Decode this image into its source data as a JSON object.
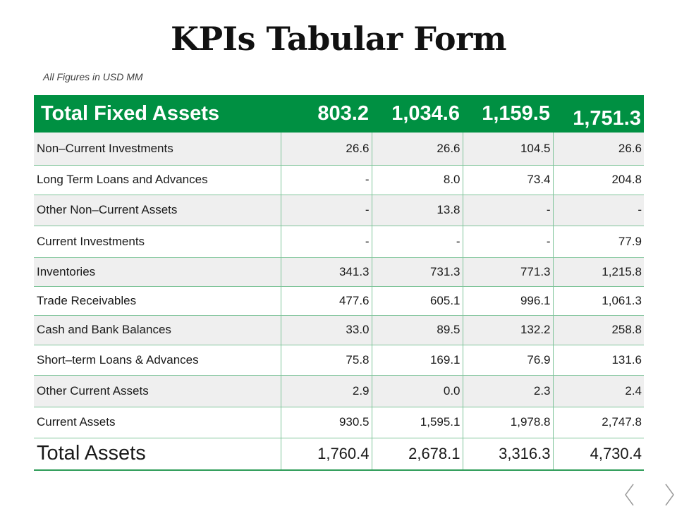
{
  "title": "KPIs Tabular Form",
  "subtitle": "All Figures in USD MM",
  "header": {
    "label": "Total Fixed Assets",
    "values": [
      "803.2",
      "1,034.6",
      "1,159.5",
      "1,751.3"
    ]
  },
  "rows": [
    {
      "label": "Non–Current Investments",
      "values": [
        "26.6",
        "26.6",
        "104.5",
        "26.6"
      ]
    },
    {
      "label": "Long Term Loans and Advances",
      "values": [
        "-",
        "8.0",
        "73.4",
        "204.8"
      ]
    },
    {
      "label": "Other Non–Current Assets",
      "values": [
        "-",
        "13.8",
        "-",
        "-"
      ]
    },
    {
      "label": "Current Investments",
      "values": [
        "-",
        "-",
        "-",
        "77.9"
      ]
    },
    {
      "label": "Inventories",
      "values": [
        "341.3",
        "731.3",
        "771.3",
        "1,215.8"
      ]
    },
    {
      "label": "Trade Receivables",
      "values": [
        "477.6",
        "605.1",
        "996.1",
        "1,061.3"
      ]
    },
    {
      "label": "Cash and Bank Balances",
      "values": [
        "33.0",
        "89.5",
        "132.2",
        "258.8"
      ]
    },
    {
      "label": "Short–term Loans & Advances",
      "values": [
        "75.8",
        "169.1",
        "76.9",
        "131.6"
      ]
    },
    {
      "label": "Other Current Assets",
      "values": [
        "2.9",
        "0.0",
        "2.3",
        "2.4"
      ]
    },
    {
      "label": "Current Assets",
      "values": [
        "930.5",
        "1,595.1",
        "1,978.8",
        "2,747.8"
      ]
    }
  ],
  "total": {
    "label": "Total Assets",
    "values": [
      "1,760.4",
      "2,678.1",
      "3,316.3",
      "4,730.4"
    ]
  },
  "nav": {
    "prev_icon": "chevron-left-icon",
    "next_icon": "chevron-right-icon"
  },
  "colors": {
    "header_green": "#009042",
    "row_shade": "#efefef",
    "border_green": "#7fc49a"
  }
}
